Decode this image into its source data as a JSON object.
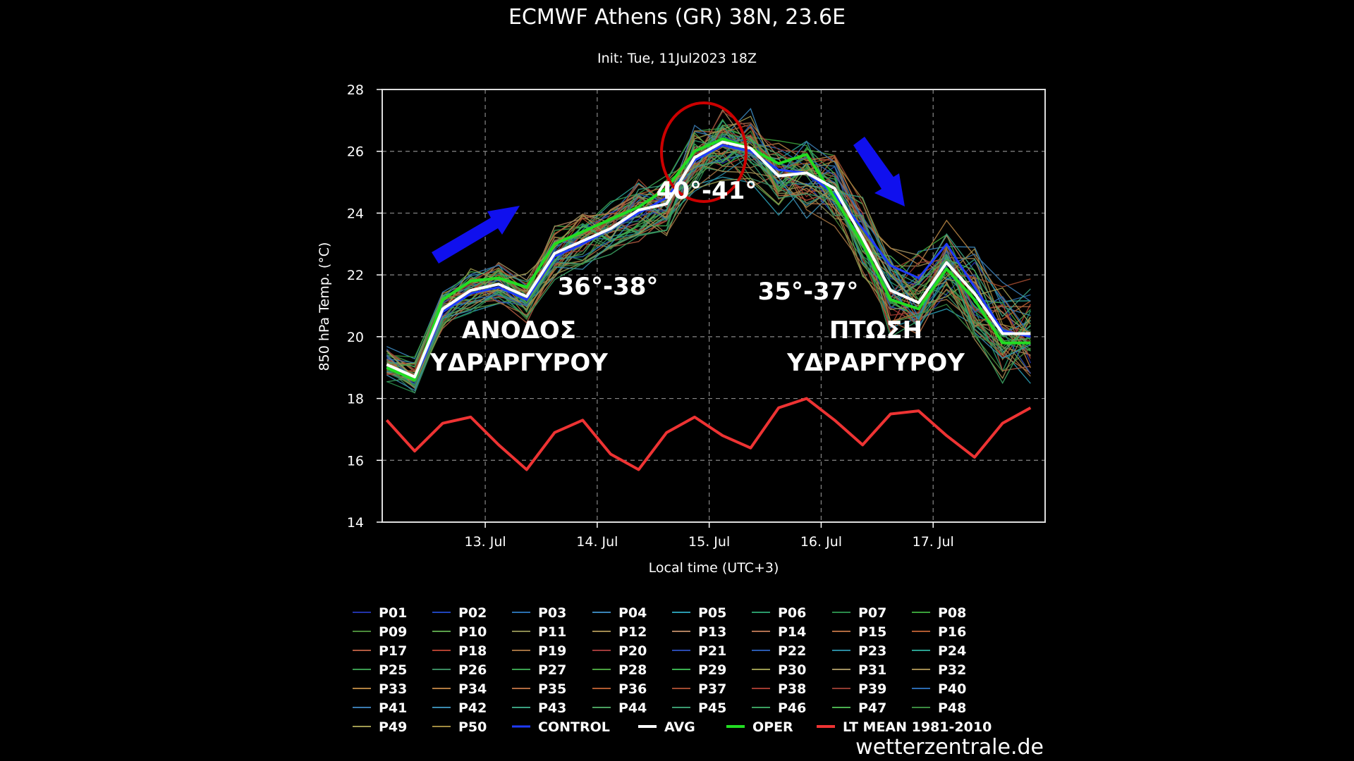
{
  "chart_data": {
    "type": "line",
    "title": "ECMWF Athens (GR) 38N, 23.6E",
    "subtitle": "Init: Tue, 11Jul2023 18Z",
    "xlabel": "Local time (UTC+3)",
    "ylabel": "850 hPa Temp. (°C)",
    "ylim": [
      14,
      28
    ],
    "yticks": [
      14,
      16,
      18,
      20,
      22,
      24,
      26,
      28
    ],
    "xlim": [
      0,
      5.92
    ],
    "xticks": [
      {
        "x": 0.92,
        "label": "13. Jul"
      },
      {
        "x": 1.92,
        "label": "14. Jul"
      },
      {
        "x": 2.92,
        "label": "15. Jul"
      },
      {
        "x": 3.92,
        "label": "16. Jul"
      },
      {
        "x": 4.92,
        "label": "17. Jul"
      }
    ],
    "grid": true,
    "legend_position": "bottom",
    "x": [
      0.04,
      0.29,
      0.54,
      0.79,
      1.04,
      1.29,
      1.54,
      1.79,
      2.04,
      2.29,
      2.54,
      2.79,
      3.04,
      3.29,
      3.54,
      3.79,
      4.04,
      4.29,
      4.54,
      4.79,
      5.04,
      5.29,
      5.54,
      5.79
    ],
    "series": [
      {
        "name": "AVG",
        "color": "#ffffff",
        "values": [
          19.1,
          18.7,
          20.9,
          21.5,
          21.7,
          21.3,
          22.7,
          23.1,
          23.5,
          24.1,
          24.3,
          25.8,
          26.3,
          26.1,
          25.2,
          25.3,
          24.8,
          23.2,
          21.5,
          21.1,
          22.4,
          21.4,
          20.1,
          20.1
        ]
      },
      {
        "name": "OPER",
        "color": "#22dd22",
        "values": [
          19.0,
          18.6,
          21.2,
          21.8,
          21.9,
          21.6,
          23.0,
          23.4,
          23.8,
          24.2,
          24.8,
          26.0,
          26.4,
          26.1,
          25.6,
          25.9,
          24.5,
          23.0,
          21.2,
          20.9,
          22.2,
          21.2,
          19.8,
          19.8
        ]
      },
      {
        "name": "CONTROL",
        "color": "#1f3bff",
        "values": [
          19.0,
          18.6,
          20.8,
          21.4,
          21.6,
          21.2,
          22.6,
          23.0,
          23.5,
          24.0,
          24.5,
          25.7,
          26.2,
          26.0,
          25.4,
          25.3,
          24.6,
          23.5,
          22.3,
          21.9,
          23.0,
          21.6,
          20.2,
          20.0
        ]
      },
      {
        "name": "LT MEAN 1981-2010",
        "color": "#ee3333",
        "values": [
          17.3,
          16.3,
          17.2,
          17.4,
          16.5,
          15.7,
          16.9,
          17.3,
          16.2,
          15.7,
          16.9,
          17.4,
          16.8,
          16.4,
          17.7,
          18.0,
          17.3,
          16.5,
          17.5,
          17.6,
          16.8,
          16.1,
          17.2,
          17.7
        ]
      }
    ],
    "ensemble_members": [
      "P01",
      "P02",
      "P03",
      "P04",
      "P05",
      "P06",
      "P07",
      "P08",
      "P09",
      "P10",
      "P11",
      "P12",
      "P13",
      "P14",
      "P15",
      "P16",
      "P17",
      "P18",
      "P19",
      "P20",
      "P21",
      "P22",
      "P23",
      "P24",
      "P25",
      "P26",
      "P27",
      "P28",
      "P29",
      "P30",
      "P31",
      "P32",
      "P33",
      "P34",
      "P35",
      "P36",
      "P37",
      "P38",
      "P39",
      "P40",
      "P41",
      "P42",
      "P43",
      "P44",
      "P45",
      "P46",
      "P47",
      "P48",
      "P49",
      "P50"
    ],
    "ensemble_colors": [
      "#2233aa",
      "#1f44bb",
      "#2a6fb0",
      "#3a84b8",
      "#2a9ab0",
      "#2a9a6a",
      "#2a8a4a",
      "#3aa03a",
      "#4a8a3a",
      "#5aa04a",
      "#8a8a50",
      "#a08a50",
      "#b08060",
      "#b07050",
      "#b06a40",
      "#b05a30",
      "#b05a40",
      "#b04030",
      "#a07040",
      "#a03a3a",
      "#2a4ab0",
      "#2a5ab0",
      "#2a8aa0",
      "#2aa090",
      "#3a9a50",
      "#3a8a60",
      "#3aa050",
      "#4aa040",
      "#3ab050",
      "#9a9a50",
      "#a09060",
      "#a08a50",
      "#b08040",
      "#b07a40",
      "#b06a40",
      "#b05a30",
      "#a04a30",
      "#a03a30",
      "#903a30",
      "#2a6ab0",
      "#3a7ab0",
      "#3a8ab0",
      "#3aa080",
      "#4aa060",
      "#3a9a70",
      "#3aa060",
      "#4ab050",
      "#3a8a40",
      "#a09a50",
      "#a08a40"
    ],
    "legend": [
      "P01",
      "P02",
      "P03",
      "P04",
      "P05",
      "P06",
      "P07",
      "P08",
      "P09",
      "P10",
      "P11",
      "P12",
      "P13",
      "P14",
      "P15",
      "P16",
      "P17",
      "P18",
      "P19",
      "P20",
      "P21",
      "P22",
      "P23",
      "P24",
      "P25",
      "P26",
      "P27",
      "P28",
      "P29",
      "P30",
      "P31",
      "P32",
      "P33",
      "P34",
      "P35",
      "P36",
      "P37",
      "P38",
      "P39",
      "P40",
      "P41",
      "P42",
      "P43",
      "P44",
      "P45",
      "P46",
      "P47",
      "P48",
      "P49",
      "P50",
      "CONTROL",
      "AVG",
      "OPER",
      "LT MEAN 1981-2010"
    ],
    "annotations": {
      "rise_temp": "36°-38°",
      "peak_temp": "40°-41°",
      "fall_temp": "35°-37°",
      "rise_line1": "ΑΝΟΔΟΣ",
      "rise_line2": "ΥΔΡΑΡΓΥΡΟΥ",
      "fall_line1": "ΠΤΩΣΗ",
      "fall_line2": "ΥΔΡΑΡΓΥΡΟΥ"
    },
    "annotation_arrow_color": "#1010ee",
    "peak_circle_color": "#cc0000",
    "watermark": "wetterzentrale.de"
  }
}
